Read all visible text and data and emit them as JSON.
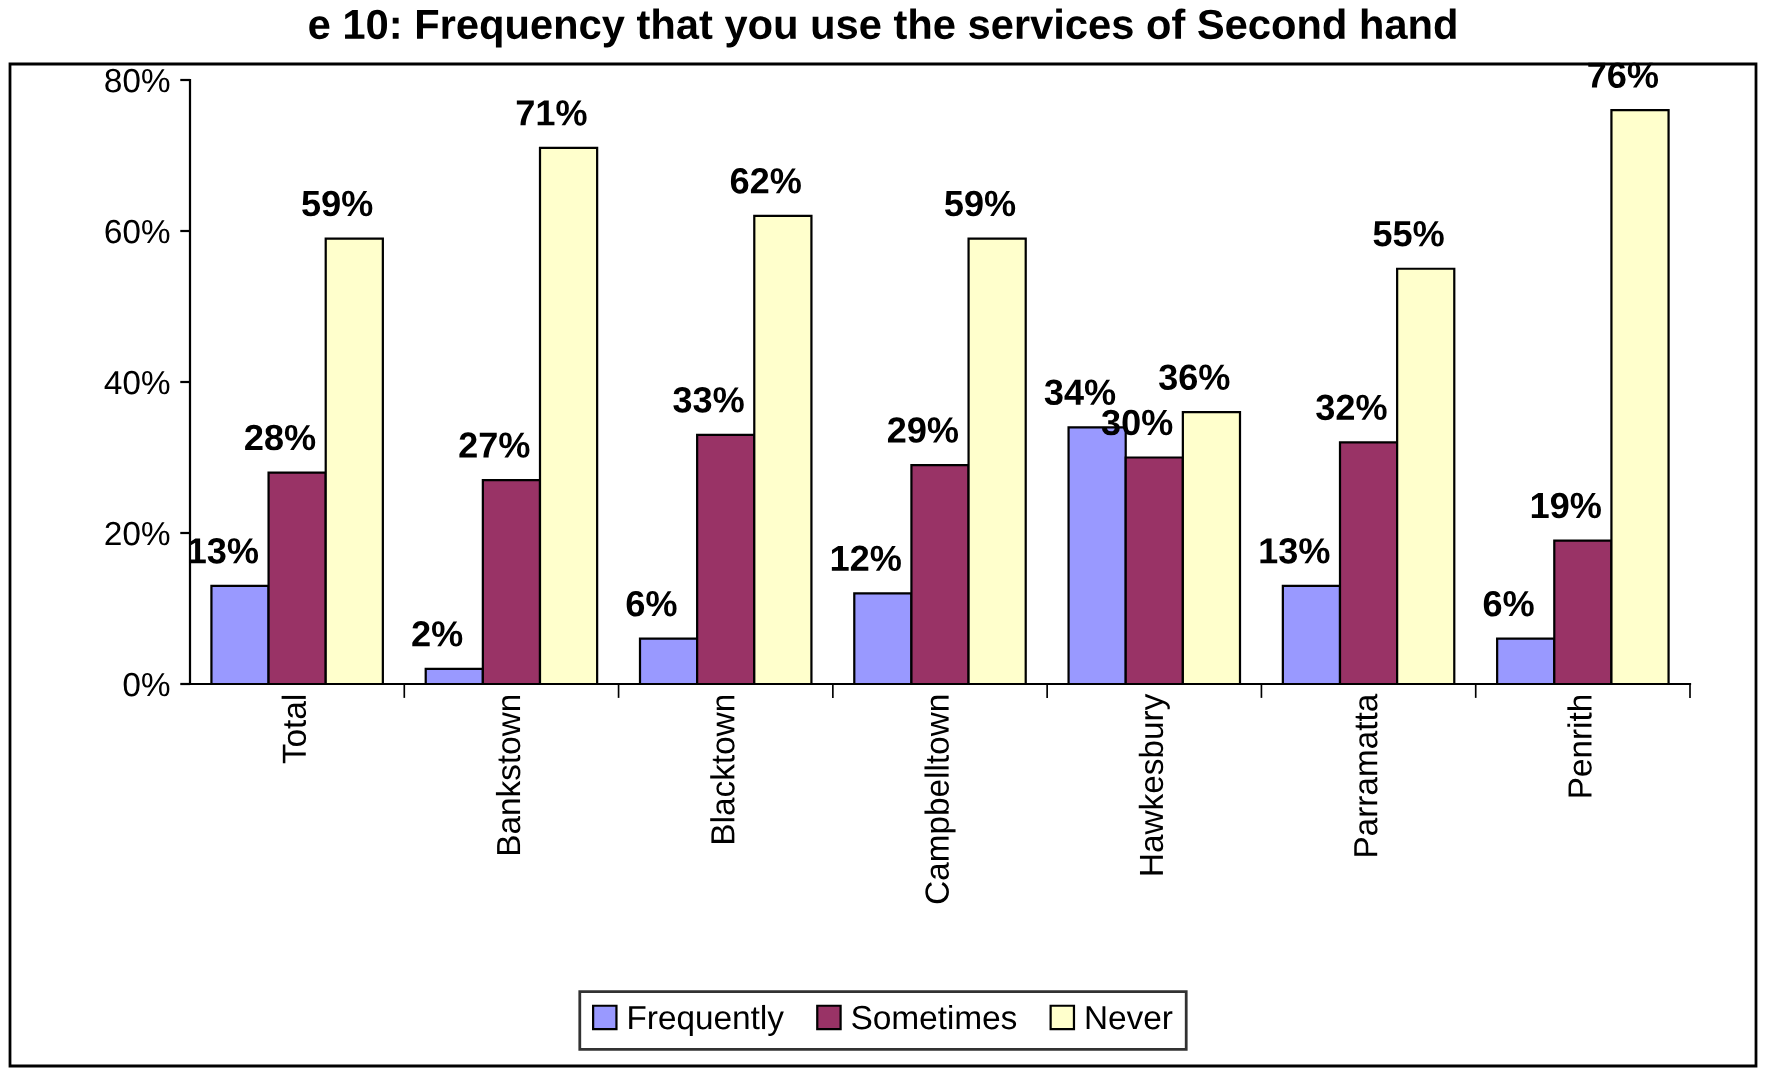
{
  "chart_data": {
    "type": "bar",
    "title": "e 10: Frequency that you use the services of Second hand",
    "categories": [
      "Total",
      "Bankstown",
      "Blacktown",
      "Campbelltown",
      "Hawkesbury",
      "Parramatta",
      "Penrith"
    ],
    "series": [
      {
        "name": "Frequently",
        "color": "#9999ff",
        "values": [
          13,
          2,
          6,
          12,
          34,
          13,
          6
        ],
        "value_labels": [
          "13%",
          "2%",
          "6%",
          "12%",
          "34%",
          "13%",
          "6%"
        ]
      },
      {
        "name": "Sometimes",
        "color": "#993366",
        "values": [
          28,
          27,
          33,
          29,
          30,
          32,
          19
        ],
        "value_labels": [
          "28%",
          "27%",
          "33%",
          "29%",
          "30%",
          "32%",
          "19%"
        ]
      },
      {
        "name": "Never",
        "color": "#ffffcc",
        "values": [
          59,
          71,
          62,
          59,
          36,
          55,
          76
        ],
        "value_labels": [
          "59%",
          "71%",
          "62%",
          "59%",
          "36%",
          "55%",
          "76%"
        ]
      }
    ],
    "ylim": [
      0,
      80
    ],
    "yticks": [
      {
        "value": 0,
        "label": "0%"
      },
      {
        "value": 20,
        "label": "20%"
      },
      {
        "value": 40,
        "label": "40%"
      },
      {
        "value": 60,
        "label": "60%"
      },
      {
        "value": 80,
        "label": "80%"
      }
    ],
    "grid": false,
    "legend": "bottom"
  }
}
